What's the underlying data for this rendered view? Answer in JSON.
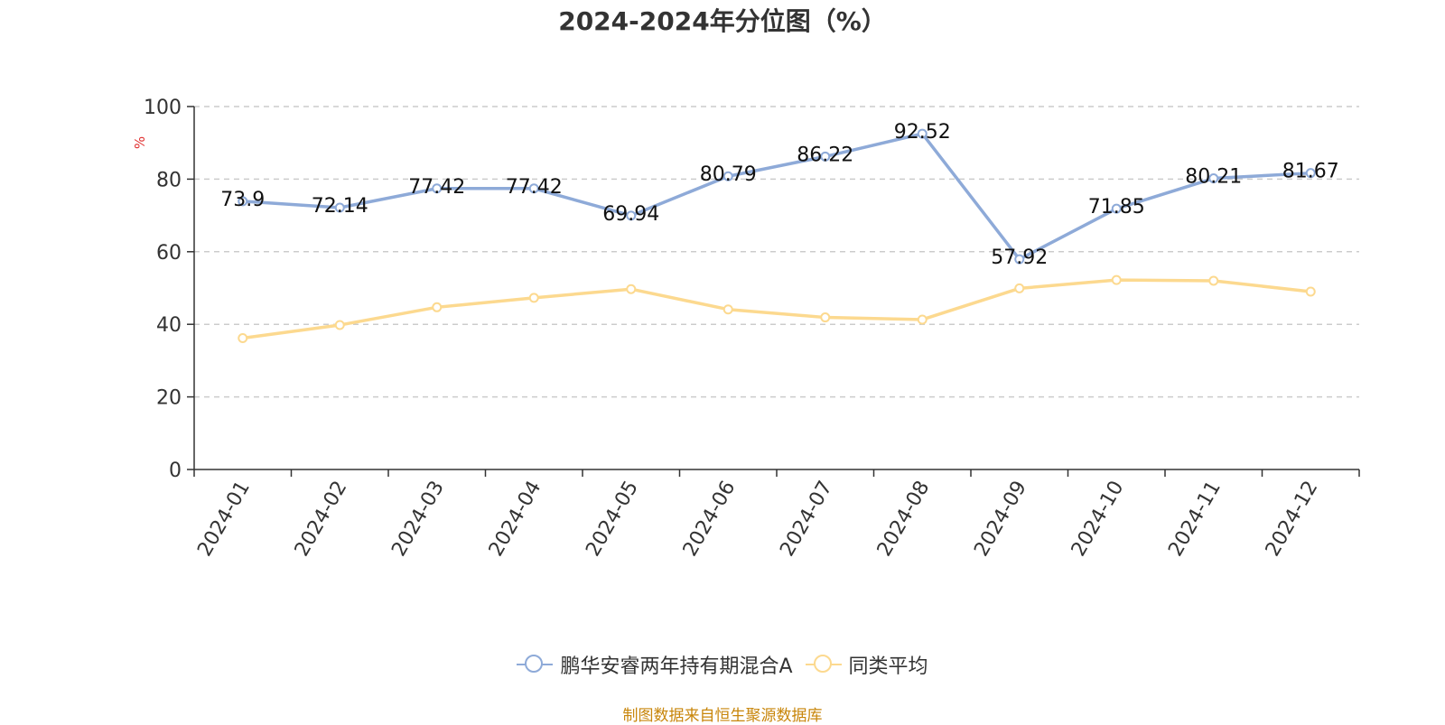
{
  "title": "2024-2024年分位图（%）",
  "footer": "制图数据来自恒生聚源数据库",
  "chart_data": {
    "type": "line",
    "title": "2024-2024年分位图（%）",
    "ylabel": "%",
    "xlabel": "",
    "ylim": [
      0,
      100
    ],
    "yticks": [
      0,
      20,
      40,
      60,
      80,
      100
    ],
    "grid": true,
    "legend_position": "bottom",
    "categories": [
      "2024-01",
      "2024-02",
      "2024-03",
      "2024-04",
      "2024-05",
      "2024-06",
      "2024-07",
      "2024-08",
      "2024-09",
      "2024-10",
      "2024-11",
      "2024-12"
    ],
    "series": [
      {
        "name": "鹏华安睿两年持有期混合A",
        "color": "#8eaad8",
        "values": [
          73.9,
          72.14,
          77.42,
          77.42,
          69.94,
          80.79,
          86.22,
          92.52,
          57.92,
          71.85,
          80.21,
          81.67
        ],
        "labels": [
          "73.9",
          "72.14",
          "77.42",
          "77.42",
          "69.94",
          "80.79",
          "86.22",
          "92.52",
          "57.92",
          "71.85",
          "80.21",
          "81.67"
        ],
        "show_labels": true
      },
      {
        "name": "同类平均",
        "color": "#fcd98f",
        "values": [
          36.2,
          39.8,
          44.7,
          47.3,
          49.7,
          44.1,
          41.9,
          41.3,
          49.9,
          52.2,
          52.0,
          49.0
        ],
        "show_labels": false
      }
    ]
  }
}
